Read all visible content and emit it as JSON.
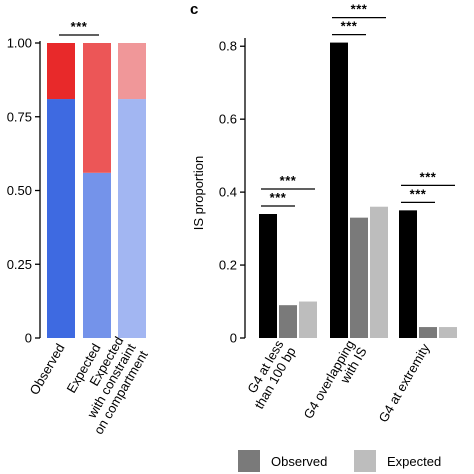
{
  "chart_data": [
    {
      "type": "bar",
      "stacked": true,
      "categories": [
        "Observed",
        "Expected",
        "Expected with constraint on compartment"
      ],
      "category_label_lines": [
        [
          "Observed"
        ],
        [
          "Expected"
        ],
        [
          "Expected",
          "with constraint",
          "on compartment"
        ]
      ],
      "series": [
        {
          "values": [
            0.81,
            0.56,
            0.81
          ],
          "colors": [
            "#3e6ae1",
            "#7493ea",
            "#a2b6f2"
          ]
        },
        {
          "values": [
            0.19,
            0.44,
            0.19
          ],
          "colors": [
            "#e8292a",
            "#ec5657",
            "#f09799"
          ]
        }
      ],
      "ylim": [
        0,
        1
      ],
      "yticks": [
        "0",
        "0.25",
        "0.50",
        "0.75",
        "1.00"
      ],
      "significance": [
        {
          "between": [
            0,
            1
          ],
          "label": "***"
        }
      ]
    },
    {
      "panel_label": "c",
      "type": "bar",
      "categories": [
        "G4 at less than 100 bp",
        "G4 overlapping with IS",
        "G4 at extremity"
      ],
      "category_label_lines": [
        [
          "G4 at less",
          "than 100 bp"
        ],
        [
          "G4 overlapping",
          "with IS"
        ],
        [
          "G4 at extremity"
        ]
      ],
      "ylabel": "IS proportion",
      "ylim": [
        0,
        0.85
      ],
      "yticks": [
        "0",
        "0.2",
        "0.4",
        "0.6",
        "0.8"
      ],
      "series": [
        {
          "name": "",
          "color": "#000000",
          "values": [
            0.34,
            0.81,
            0.35
          ]
        },
        {
          "name": "Observed",
          "color": "#7a7a7a",
          "values": [
            0.09,
            0.33,
            0.03
          ]
        },
        {
          "name": "Expected",
          "color": "#bdbdbd",
          "values": [
            0.1,
            0.36,
            0.03
          ]
        }
      ],
      "significance": [
        {
          "group": 0,
          "pairs": [
            {
              "between": [
                0,
                1
              ],
              "label": "***"
            },
            {
              "between": [
                0,
                2
              ],
              "label": "***"
            }
          ]
        },
        {
          "group": 1,
          "pairs": [
            {
              "between": [
                0,
                1
              ],
              "label": "***"
            },
            {
              "between": [
                0,
                2
              ],
              "label": "***"
            }
          ]
        },
        {
          "group": 2,
          "pairs": [
            {
              "between": [
                0,
                1
              ],
              "label": "***"
            },
            {
              "between": [
                0,
                2
              ],
              "label": "***"
            }
          ]
        }
      ],
      "legend": {
        "position": "bottom",
        "items": [
          "Observed",
          "Expected"
        ]
      }
    }
  ]
}
